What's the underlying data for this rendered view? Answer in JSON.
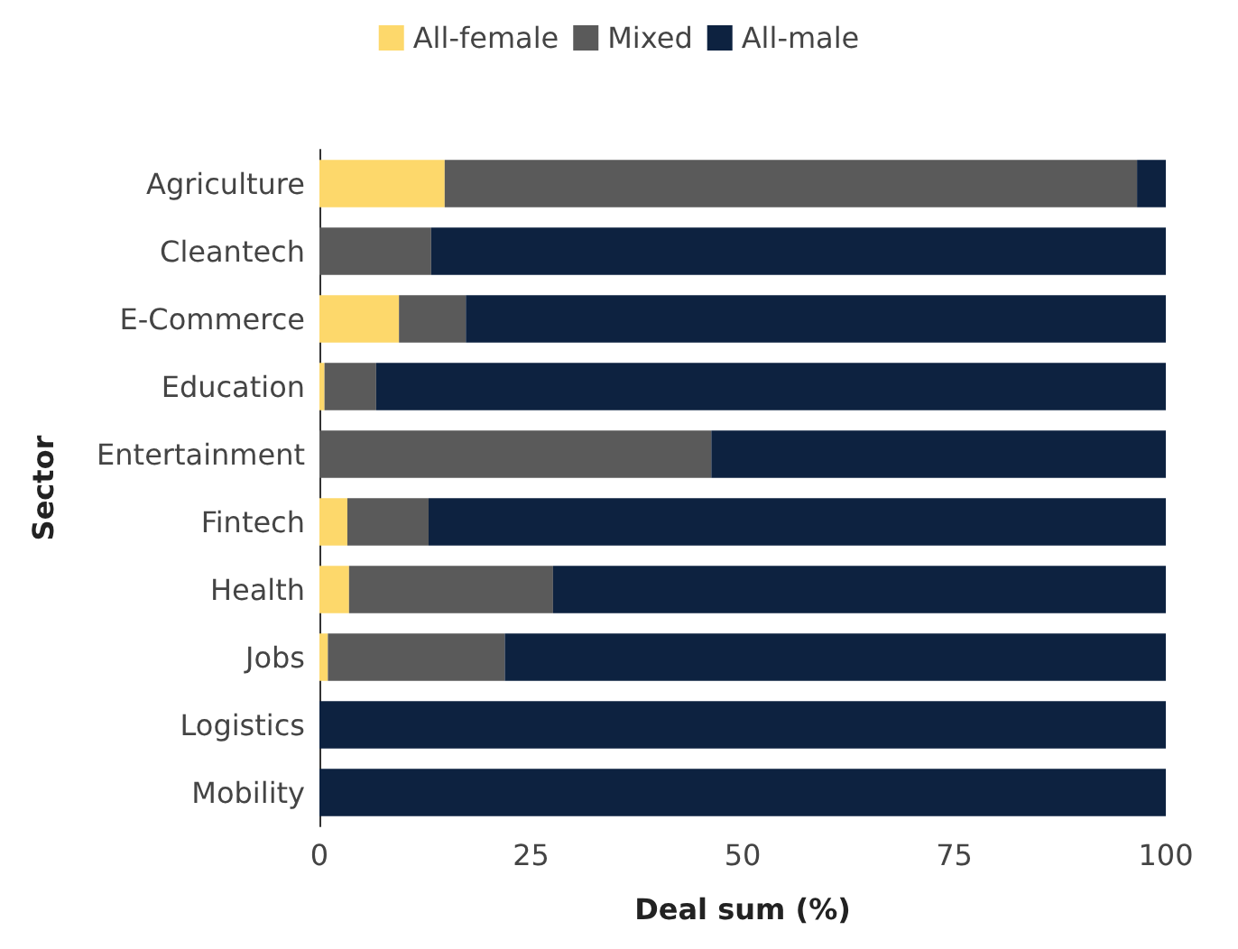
{
  "chart_data": {
    "type": "bar",
    "orientation": "horizontal",
    "stacked": true,
    "xlabel": "Deal sum (%)",
    "ylabel": "Sector",
    "categories": [
      "Agriculture",
      "Cleantech",
      "E-Commerce",
      "Education",
      "Entertainment",
      "Fintech",
      "Health",
      "Jobs",
      "Logistics",
      "Mobility"
    ],
    "series": [
      {
        "name": "All-female",
        "color": "#fdd86b",
        "values": [
          14.8,
          0,
          9.4,
          0.6,
          0,
          3.3,
          3.5,
          1.0,
          0,
          0
        ]
      },
      {
        "name": "Mixed",
        "color": "#5a5a5a",
        "values": [
          81.8,
          13.2,
          7.9,
          6.1,
          46.3,
          9.6,
          24.1,
          20.9,
          0,
          0
        ]
      },
      {
        "name": "All-male",
        "color": "#0d2240",
        "values": [
          3.4,
          86.8,
          82.7,
          93.3,
          53.7,
          87.1,
          72.4,
          78.1,
          100,
          100
        ]
      }
    ],
    "xlim": [
      0,
      100
    ],
    "xticks": [
      0,
      25,
      50,
      75,
      100
    ],
    "grid": false,
    "legend": "top"
  }
}
